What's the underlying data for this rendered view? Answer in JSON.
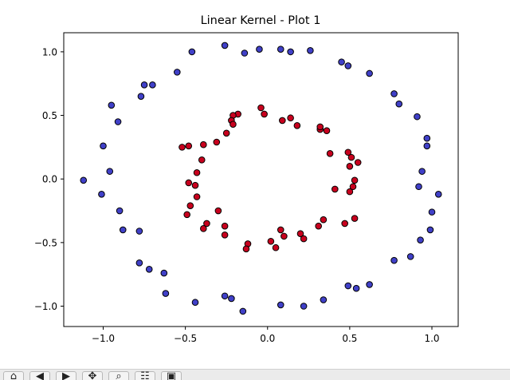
{
  "chart_data": {
    "type": "scatter",
    "title": "Linear Kernel - Plot 1",
    "xlabel": "",
    "ylabel": "",
    "xlim": [
      -1.24,
      1.16
    ],
    "ylim": [
      -1.16,
      1.15
    ],
    "xticks": [
      -1.0,
      -0.5,
      0.0,
      0.5,
      1.0
    ],
    "yticks": [
      -1.0,
      -0.5,
      0.0,
      0.5,
      1.0
    ],
    "xtick_labels": [
      "−1.0",
      "−0.5",
      "0.0",
      "0.5",
      "1.0"
    ],
    "ytick_labels": [
      "−1.0",
      "−0.5",
      "0.0",
      "0.5",
      "1.0"
    ],
    "grid": false,
    "series": [
      {
        "color": "#4040c8",
        "points": [
          [
            -0.46,
            1.0
          ],
          [
            -0.26,
            1.05
          ],
          [
            -0.14,
            0.99
          ],
          [
            -0.05,
            1.02
          ],
          [
            0.08,
            1.02
          ],
          [
            0.14,
            1.0
          ],
          [
            0.26,
            1.01
          ],
          [
            0.45,
            0.92
          ],
          [
            0.49,
            0.89
          ],
          [
            0.62,
            0.83
          ],
          [
            -0.55,
            0.84
          ],
          [
            -0.75,
            0.74
          ],
          [
            -0.7,
            0.74
          ],
          [
            -0.77,
            0.65
          ],
          [
            -0.95,
            0.58
          ],
          [
            -0.91,
            0.45
          ],
          [
            -1.0,
            0.26
          ],
          [
            -0.96,
            0.06
          ],
          [
            -1.12,
            -0.01
          ],
          [
            -1.01,
            -0.12
          ],
          [
            -0.9,
            -0.25
          ],
          [
            -0.88,
            -0.4
          ],
          [
            -0.78,
            -0.41
          ],
          [
            -0.78,
            -0.66
          ],
          [
            -0.72,
            -0.71
          ],
          [
            -0.63,
            -0.74
          ],
          [
            -0.62,
            -0.9
          ],
          [
            -0.44,
            -0.97
          ],
          [
            -0.26,
            -0.92
          ],
          [
            -0.22,
            -0.94
          ],
          [
            -0.15,
            -1.04
          ],
          [
            0.08,
            -0.99
          ],
          [
            0.22,
            -1.0
          ],
          [
            0.34,
            -0.95
          ],
          [
            0.49,
            -0.84
          ],
          [
            0.54,
            -0.86
          ],
          [
            0.62,
            -0.83
          ],
          [
            0.77,
            -0.64
          ],
          [
            0.87,
            -0.61
          ],
          [
            0.93,
            -0.48
          ],
          [
            0.99,
            -0.4
          ],
          [
            1.0,
            -0.26
          ],
          [
            1.04,
            -0.12
          ],
          [
            0.92,
            -0.06
          ],
          [
            0.94,
            0.06
          ],
          [
            0.97,
            0.26
          ],
          [
            0.97,
            0.32
          ],
          [
            0.91,
            0.49
          ],
          [
            0.8,
            0.59
          ],
          [
            0.77,
            0.67
          ]
        ]
      },
      {
        "color": "#c8001e",
        "points": [
          [
            -0.04,
            0.56
          ],
          [
            -0.02,
            0.51
          ],
          [
            -0.18,
            0.51
          ],
          [
            -0.21,
            0.5
          ],
          [
            -0.22,
            0.46
          ],
          [
            -0.21,
            0.43
          ],
          [
            -0.25,
            0.36
          ],
          [
            -0.31,
            0.29
          ],
          [
            -0.39,
            0.27
          ],
          [
            -0.48,
            0.26
          ],
          [
            -0.52,
            0.25
          ],
          [
            -0.4,
            0.15
          ],
          [
            -0.43,
            0.05
          ],
          [
            -0.48,
            -0.03
          ],
          [
            -0.44,
            -0.05
          ],
          [
            -0.43,
            -0.14
          ],
          [
            -0.47,
            -0.21
          ],
          [
            -0.49,
            -0.28
          ],
          [
            -0.3,
            -0.25
          ],
          [
            -0.37,
            -0.35
          ],
          [
            -0.39,
            -0.39
          ],
          [
            -0.26,
            -0.37
          ],
          [
            -0.26,
            -0.44
          ],
          [
            -0.12,
            -0.51
          ],
          [
            -0.13,
            -0.55
          ],
          [
            0.02,
            -0.49
          ],
          [
            0.05,
            -0.54
          ],
          [
            0.08,
            -0.4
          ],
          [
            0.1,
            -0.45
          ],
          [
            0.2,
            -0.43
          ],
          [
            0.22,
            -0.47
          ],
          [
            0.31,
            -0.37
          ],
          [
            0.34,
            -0.32
          ],
          [
            0.47,
            -0.35
          ],
          [
            0.53,
            -0.31
          ],
          [
            0.5,
            -0.1
          ],
          [
            0.52,
            -0.06
          ],
          [
            0.53,
            -0.01
          ],
          [
            0.41,
            -0.08
          ],
          [
            0.5,
            0.1
          ],
          [
            0.55,
            0.13
          ],
          [
            0.51,
            0.17
          ],
          [
            0.49,
            0.21
          ],
          [
            0.38,
            0.2
          ],
          [
            0.36,
            0.38
          ],
          [
            0.32,
            0.39
          ],
          [
            0.32,
            0.41
          ],
          [
            0.18,
            0.42
          ],
          [
            0.14,
            0.48
          ],
          [
            0.09,
            0.46
          ]
        ]
      }
    ]
  },
  "toolbar": {
    "items": [
      {
        "name": "home-button",
        "glyph": "⌂",
        "icon": "home-icon"
      },
      {
        "name": "back-button",
        "glyph": "◀",
        "icon": "back-arrow-icon"
      },
      {
        "name": "forward-button",
        "glyph": "▶",
        "icon": "forward-arrow-icon"
      },
      {
        "name": "pan-button",
        "glyph": "✥",
        "icon": "pan-icon"
      },
      {
        "name": "zoom-button",
        "glyph": "⌕",
        "icon": "zoom-icon"
      },
      {
        "name": "configure-button",
        "glyph": "☷",
        "icon": "sliders-icon"
      },
      {
        "name": "save-button",
        "glyph": "▣",
        "icon": "save-icon"
      }
    ]
  }
}
